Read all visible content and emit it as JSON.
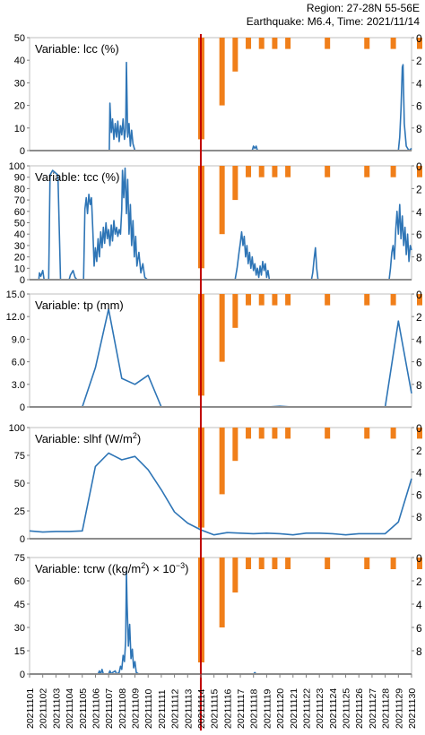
{
  "header": {
    "region": "Region: 27-28N 55-56E",
    "earthquake": "Earthquake: M6.4, Time: 2021/11/14"
  },
  "chart_data": {
    "type": "line",
    "dates": [
      "20211101",
      "20211102",
      "20211103",
      "20211104",
      "20211105",
      "20211106",
      "20211107",
      "20211108",
      "20211109",
      "20211110",
      "20211111",
      "20211112",
      "20211113",
      "20211114",
      "20211115",
      "20211116",
      "20211117",
      "20211118",
      "20211119",
      "20211120",
      "20211121",
      "20211122",
      "20211123",
      "20211124",
      "20211125",
      "20211126",
      "20211127",
      "20211128",
      "20211129",
      "20211130"
    ],
    "earthquake_date": "20211114",
    "highlight_range": [
      "20211107.5",
      "20211108.5"
    ],
    "colors": {
      "line": "#2e75b6",
      "bars": "#f07f1a",
      "highlight": "#f4b8b8",
      "quake_line": "#c00000"
    },
    "bars": {
      "axis": "right",
      "ylim": [
        0,
        10
      ],
      "right_ticks": [
        0,
        2,
        4,
        6,
        8
      ],
      "items": [
        {
          "x": 14.0,
          "value": 9.0
        },
        {
          "x": 15.0,
          "value": 6.0
        },
        {
          "x": 16.0,
          "value": 3.0
        },
        {
          "x": 17.0,
          "value": 1.0
        },
        {
          "x": 18.0,
          "value": 1.0
        },
        {
          "x": 19.0,
          "value": 1.0
        },
        {
          "x": 20.0,
          "value": 1.0
        },
        {
          "x": 23.0,
          "value": 1.0
        },
        {
          "x": 26.0,
          "value": 1.0
        },
        {
          "x": 28.0,
          "value": 1.0
        },
        {
          "x": 30.0,
          "value": 1.0
        }
      ]
    },
    "panels": [
      {
        "label": "Variable: lcc (%)",
        "ylim": [
          0,
          50
        ],
        "yticks": [
          "0",
          "10",
          "20",
          "30",
          "40",
          "50"
        ],
        "series": [
          {
            "x": 1.0,
            "y": 0
          },
          {
            "x": 7.05,
            "y": 0
          },
          {
            "x": 7.1,
            "y": 21
          },
          {
            "x": 7.2,
            "y": 8
          },
          {
            "x": 7.3,
            "y": 14
          },
          {
            "x": 7.4,
            "y": 5
          },
          {
            "x": 7.5,
            "y": 12
          },
          {
            "x": 7.6,
            "y": 6
          },
          {
            "x": 7.7,
            "y": 13
          },
          {
            "x": 7.8,
            "y": 4
          },
          {
            "x": 7.9,
            "y": 11
          },
          {
            "x": 8.0,
            "y": 7
          },
          {
            "x": 8.1,
            "y": 14
          },
          {
            "x": 8.2,
            "y": 5
          },
          {
            "x": 8.3,
            "y": 10
          },
          {
            "x": 8.35,
            "y": 39
          },
          {
            "x": 8.45,
            "y": 6
          },
          {
            "x": 8.55,
            "y": 12
          },
          {
            "x": 8.65,
            "y": 2
          },
          {
            "x": 8.75,
            "y": 9
          },
          {
            "x": 8.85,
            "y": 3
          },
          {
            "x": 9.0,
            "y": 0
          },
          {
            "x": 17.9,
            "y": 0
          },
          {
            "x": 18.0,
            "y": 2
          },
          {
            "x": 18.1,
            "y": 1
          },
          {
            "x": 18.2,
            "y": 2
          },
          {
            "x": 18.3,
            "y": 0
          },
          {
            "x": 29.0,
            "y": 0
          },
          {
            "x": 29.1,
            "y": 6
          },
          {
            "x": 29.2,
            "y": 18
          },
          {
            "x": 29.3,
            "y": 37
          },
          {
            "x": 29.35,
            "y": 38
          },
          {
            "x": 29.45,
            "y": 12
          },
          {
            "x": 29.6,
            "y": 2
          },
          {
            "x": 29.8,
            "y": 0
          },
          {
            "x": 30.0,
            "y": 1
          }
        ]
      },
      {
        "label": "Variable: tcc (%)",
        "ylim": [
          0,
          100
        ],
        "yticks": [
          "0",
          "10",
          "20",
          "30",
          "40",
          "50",
          "60",
          "70",
          "80",
          "90",
          "100"
        ],
        "series": [
          {
            "x": 1.0,
            "y": 0
          },
          {
            "x": 1.7,
            "y": 0
          },
          {
            "x": 1.75,
            "y": 6
          },
          {
            "x": 1.85,
            "y": 3
          },
          {
            "x": 2.0,
            "y": 8
          },
          {
            "x": 2.1,
            "y": 0
          },
          {
            "x": 2.45,
            "y": 0
          },
          {
            "x": 2.55,
            "y": 92
          },
          {
            "x": 2.75,
            "y": 96
          },
          {
            "x": 2.95,
            "y": 94
          },
          {
            "x": 3.15,
            "y": 92
          },
          {
            "x": 3.35,
            "y": 0
          },
          {
            "x": 4.0,
            "y": 0
          },
          {
            "x": 4.1,
            "y": 4
          },
          {
            "x": 4.3,
            "y": 8
          },
          {
            "x": 4.45,
            "y": 2
          },
          {
            "x": 4.6,
            "y": 0
          },
          {
            "x": 5.1,
            "y": 0
          },
          {
            "x": 5.2,
            "y": 62
          },
          {
            "x": 5.3,
            "y": 72
          },
          {
            "x": 5.4,
            "y": 58
          },
          {
            "x": 5.5,
            "y": 75
          },
          {
            "x": 5.6,
            "y": 66
          },
          {
            "x": 5.7,
            "y": 72
          },
          {
            "x": 5.8,
            "y": 44
          },
          {
            "x": 5.9,
            "y": 12
          },
          {
            "x": 6.0,
            "y": 28
          },
          {
            "x": 6.1,
            "y": 16
          },
          {
            "x": 6.2,
            "y": 36
          },
          {
            "x": 6.3,
            "y": 20
          },
          {
            "x": 6.4,
            "y": 42
          },
          {
            "x": 6.5,
            "y": 28
          },
          {
            "x": 6.6,
            "y": 46
          },
          {
            "x": 6.7,
            "y": 32
          },
          {
            "x": 6.8,
            "y": 50
          },
          {
            "x": 6.9,
            "y": 36
          },
          {
            "x": 7.0,
            "y": 44
          },
          {
            "x": 7.1,
            "y": 30
          },
          {
            "x": 7.2,
            "y": 48
          },
          {
            "x": 7.3,
            "y": 34
          },
          {
            "x": 7.4,
            "y": 52
          },
          {
            "x": 7.5,
            "y": 40
          },
          {
            "x": 7.6,
            "y": 46
          },
          {
            "x": 7.7,
            "y": 38
          },
          {
            "x": 7.8,
            "y": 44
          },
          {
            "x": 7.9,
            "y": 40
          },
          {
            "x": 8.0,
            "y": 62
          },
          {
            "x": 8.05,
            "y": 96
          },
          {
            "x": 8.15,
            "y": 72
          },
          {
            "x": 8.25,
            "y": 98
          },
          {
            "x": 8.35,
            "y": 58
          },
          {
            "x": 8.45,
            "y": 88
          },
          {
            "x": 8.55,
            "y": 40
          },
          {
            "x": 8.65,
            "y": 66
          },
          {
            "x": 8.75,
            "y": 30
          },
          {
            "x": 8.85,
            "y": 52
          },
          {
            "x": 8.95,
            "y": 20
          },
          {
            "x": 9.05,
            "y": 38
          },
          {
            "x": 9.15,
            "y": 12
          },
          {
            "x": 9.3,
            "y": 24
          },
          {
            "x": 9.45,
            "y": 6
          },
          {
            "x": 9.6,
            "y": 14
          },
          {
            "x": 9.75,
            "y": 2
          },
          {
            "x": 9.95,
            "y": 0
          },
          {
            "x": 16.6,
            "y": 0
          },
          {
            "x": 16.75,
            "y": 10
          },
          {
            "x": 16.9,
            "y": 24
          },
          {
            "x": 17.0,
            "y": 32
          },
          {
            "x": 17.1,
            "y": 42
          },
          {
            "x": 17.2,
            "y": 30
          },
          {
            "x": 17.3,
            "y": 38
          },
          {
            "x": 17.4,
            "y": 20
          },
          {
            "x": 17.5,
            "y": 30
          },
          {
            "x": 17.6,
            "y": 14
          },
          {
            "x": 17.7,
            "y": 24
          },
          {
            "x": 17.8,
            "y": 10
          },
          {
            "x": 17.9,
            "y": 20
          },
          {
            "x": 18.0,
            "y": 8
          },
          {
            "x": 18.1,
            "y": 14
          },
          {
            "x": 18.2,
            "y": 4
          },
          {
            "x": 18.3,
            "y": 10
          },
          {
            "x": 18.4,
            "y": 2
          },
          {
            "x": 18.5,
            "y": 12
          },
          {
            "x": 18.6,
            "y": 4
          },
          {
            "x": 18.7,
            "y": 16
          },
          {
            "x": 18.8,
            "y": 8
          },
          {
            "x": 18.9,
            "y": 14
          },
          {
            "x": 19.0,
            "y": 2
          },
          {
            "x": 19.1,
            "y": 8
          },
          {
            "x": 19.2,
            "y": 0
          },
          {
            "x": 22.4,
            "y": 0
          },
          {
            "x": 22.5,
            "y": 6
          },
          {
            "x": 22.6,
            "y": 18
          },
          {
            "x": 22.7,
            "y": 28
          },
          {
            "x": 22.8,
            "y": 10
          },
          {
            "x": 22.9,
            "y": 0
          },
          {
            "x": 28.3,
            "y": 0
          },
          {
            "x": 28.4,
            "y": 10
          },
          {
            "x": 28.5,
            "y": 24
          },
          {
            "x": 28.6,
            "y": 30
          },
          {
            "x": 28.7,
            "y": 18
          },
          {
            "x": 28.8,
            "y": 44
          },
          {
            "x": 28.9,
            "y": 60
          },
          {
            "x": 29.0,
            "y": 40
          },
          {
            "x": 29.1,
            "y": 66
          },
          {
            "x": 29.2,
            "y": 36
          },
          {
            "x": 29.3,
            "y": 56
          },
          {
            "x": 29.4,
            "y": 30
          },
          {
            "x": 29.5,
            "y": 46
          },
          {
            "x": 29.6,
            "y": 22
          },
          {
            "x": 29.7,
            "y": 40
          },
          {
            "x": 29.8,
            "y": 16
          },
          {
            "x": 29.9,
            "y": 30
          },
          {
            "x": 30.0,
            "y": 26
          }
        ]
      },
      {
        "label": "Variable: tp (mm)",
        "ylim": [
          0,
          15
        ],
        "yticks": [
          "0",
          "3.0",
          "6.0",
          "9.0",
          "12.0",
          "15.0"
        ],
        "series": [
          {
            "x": 1,
            "y": 0
          },
          {
            "x": 2,
            "y": 0
          },
          {
            "x": 3,
            "y": 0
          },
          {
            "x": 4,
            "y": 0
          },
          {
            "x": 5,
            "y": 0
          },
          {
            "x": 6,
            "y": 5.2
          },
          {
            "x": 7,
            "y": 13.0
          },
          {
            "x": 8,
            "y": 3.8
          },
          {
            "x": 9,
            "y": 3.0
          },
          {
            "x": 10,
            "y": 4.2
          },
          {
            "x": 11,
            "y": 0
          },
          {
            "x": 12,
            "y": 0
          },
          {
            "x": 13,
            "y": 0
          },
          {
            "x": 14,
            "y": 0
          },
          {
            "x": 15,
            "y": 0
          },
          {
            "x": 16,
            "y": 0
          },
          {
            "x": 17,
            "y": 0
          },
          {
            "x": 18,
            "y": 0
          },
          {
            "x": 19,
            "y": 0
          },
          {
            "x": 20,
            "y": 0.1
          },
          {
            "x": 21,
            "y": 0
          },
          {
            "x": 22,
            "y": 0
          },
          {
            "x": 23,
            "y": 0
          },
          {
            "x": 24,
            "y": 0
          },
          {
            "x": 25,
            "y": 0
          },
          {
            "x": 26,
            "y": 0
          },
          {
            "x": 27,
            "y": 0
          },
          {
            "x": 28,
            "y": 0
          },
          {
            "x": 29,
            "y": 11.4
          },
          {
            "x": 30,
            "y": 1.8
          }
        ]
      },
      {
        "label": "Variable: slhf (W/m",
        "label_sup": "2",
        "label_end": ")",
        "ylim": [
          0,
          100
        ],
        "yticks": [
          "0",
          "25",
          "50",
          "75",
          "100"
        ],
        "series": [
          {
            "x": 1,
            "y": 7
          },
          {
            "x": 2,
            "y": 6
          },
          {
            "x": 3,
            "y": 6.5
          },
          {
            "x": 4,
            "y": 6.5
          },
          {
            "x": 5,
            "y": 7
          },
          {
            "x": 6,
            "y": 65
          },
          {
            "x": 7,
            "y": 77
          },
          {
            "x": 8,
            "y": 71
          },
          {
            "x": 9,
            "y": 74
          },
          {
            "x": 10,
            "y": 62
          },
          {
            "x": 11,
            "y": 44
          },
          {
            "x": 12,
            "y": 24
          },
          {
            "x": 13,
            "y": 14
          },
          {
            "x": 14,
            "y": 8
          },
          {
            "x": 15,
            "y": 3.5
          },
          {
            "x": 16,
            "y": 5.5
          },
          {
            "x": 17,
            "y": 5
          },
          {
            "x": 18,
            "y": 4.5
          },
          {
            "x": 19,
            "y": 5
          },
          {
            "x": 20,
            "y": 4.5
          },
          {
            "x": 21,
            "y": 3.5
          },
          {
            "x": 22,
            "y": 5
          },
          {
            "x": 23,
            "y": 5
          },
          {
            "x": 24,
            "y": 4.5
          },
          {
            "x": 25,
            "y": 3.5
          },
          {
            "x": 26,
            "y": 4.5
          },
          {
            "x": 27,
            "y": 4.5
          },
          {
            "x": 28,
            "y": 4.5
          },
          {
            "x": 29,
            "y": 15
          },
          {
            "x": 30,
            "y": 54
          }
        ]
      },
      {
        "label": "Variable: tcrw ((kg/m",
        "label_sup": "2",
        "label_end": ") × 10",
        "label_sup2": "−3",
        "label_end2": ")",
        "ylim": [
          0,
          75
        ],
        "yticks": [
          "0",
          "15",
          "30",
          "45",
          "60",
          "75"
        ],
        "series": [
          {
            "x": 1.0,
            "y": 0
          },
          {
            "x": 6.2,
            "y": 0
          },
          {
            "x": 6.3,
            "y": 2
          },
          {
            "x": 6.4,
            "y": 0
          },
          {
            "x": 6.5,
            "y": 3
          },
          {
            "x": 6.6,
            "y": 0
          },
          {
            "x": 7.0,
            "y": 0
          },
          {
            "x": 7.1,
            "y": 2
          },
          {
            "x": 7.2,
            "y": 0
          },
          {
            "x": 7.3,
            "y": 1
          },
          {
            "x": 7.5,
            "y": 2
          },
          {
            "x": 7.6,
            "y": 0
          },
          {
            "x": 7.8,
            "y": 1
          },
          {
            "x": 7.9,
            "y": 5
          },
          {
            "x": 8.0,
            "y": 3
          },
          {
            "x": 8.1,
            "y": 12
          },
          {
            "x": 8.2,
            "y": 8
          },
          {
            "x": 8.3,
            "y": 22
          },
          {
            "x": 8.35,
            "y": 66
          },
          {
            "x": 8.4,
            "y": 46
          },
          {
            "x": 8.5,
            "y": 18
          },
          {
            "x": 8.6,
            "y": 32
          },
          {
            "x": 8.7,
            "y": 10
          },
          {
            "x": 8.8,
            "y": 16
          },
          {
            "x": 8.9,
            "y": 4
          },
          {
            "x": 9.0,
            "y": 8
          },
          {
            "x": 9.1,
            "y": 1
          },
          {
            "x": 9.3,
            "y": 0
          },
          {
            "x": 18.0,
            "y": 0
          },
          {
            "x": 18.1,
            "y": 1
          },
          {
            "x": 18.2,
            "y": 0
          },
          {
            "x": 30.0,
            "y": 0
          }
        ]
      }
    ]
  }
}
